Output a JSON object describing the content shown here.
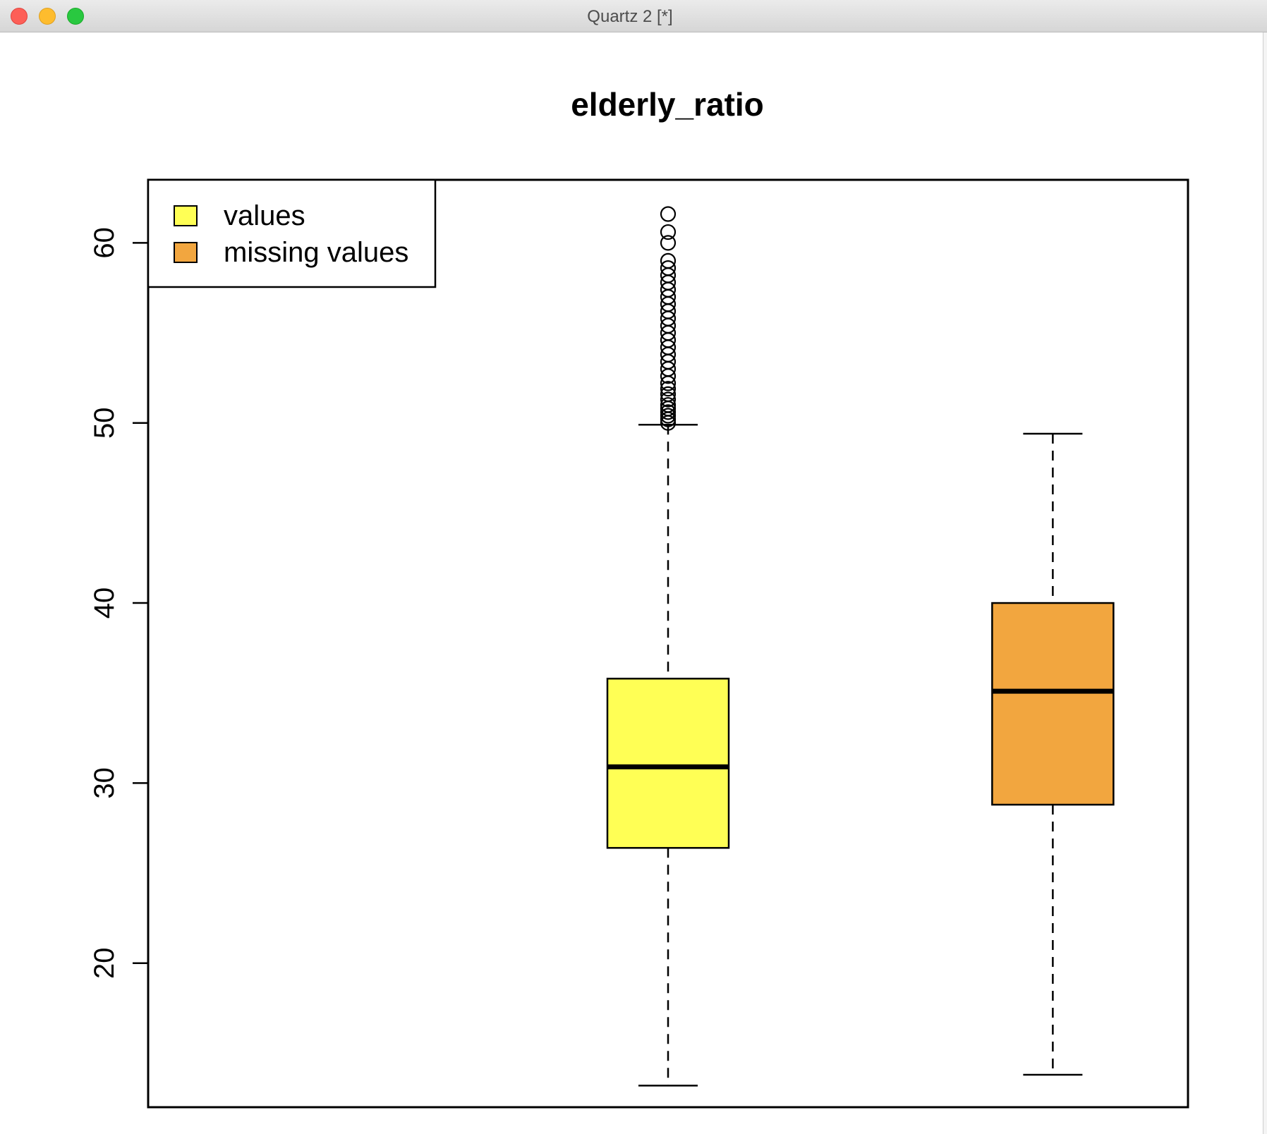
{
  "window": {
    "title": "Quartz 2 [*]"
  },
  "chart_data": {
    "type": "box",
    "title": "elderly_ratio",
    "xlabel": "",
    "ylabel": "",
    "ylim": [
      12.0,
      63.5
    ],
    "yticks": [
      20,
      30,
      40,
      50,
      60
    ],
    "ytick_labels": [
      "20",
      "30",
      "40",
      "50",
      "60"
    ],
    "legend": {
      "position": "top-left",
      "entries": [
        {
          "label": "values",
          "color": "#ffff55"
        },
        {
          "label": "missing values",
          "color": "#f2a63f"
        }
      ]
    },
    "boxes": [
      {
        "name": "values",
        "color": "#ffff55",
        "x_position": 0.5,
        "whisker_low": 13.2,
        "q1": 26.4,
        "median": 30.9,
        "q3": 35.8,
        "whisker_high": 49.9,
        "outliers": [
          50.0,
          50.2,
          50.4,
          50.6,
          50.8,
          51.0,
          51.3,
          51.6,
          51.9,
          52.2,
          52.6,
          53.0,
          53.4,
          53.8,
          54.2,
          54.6,
          55.0,
          55.4,
          55.8,
          56.2,
          56.6,
          57.0,
          57.4,
          57.8,
          58.2,
          58.6,
          59.0,
          60.0,
          60.6,
          61.6
        ]
      },
      {
        "name": "missing values",
        "color": "#f2a63f",
        "x_position": 0.87,
        "whisker_low": 13.8,
        "q1": 28.8,
        "median": 35.1,
        "q3": 40.0,
        "whisker_high": 49.4,
        "outliers": []
      }
    ]
  }
}
